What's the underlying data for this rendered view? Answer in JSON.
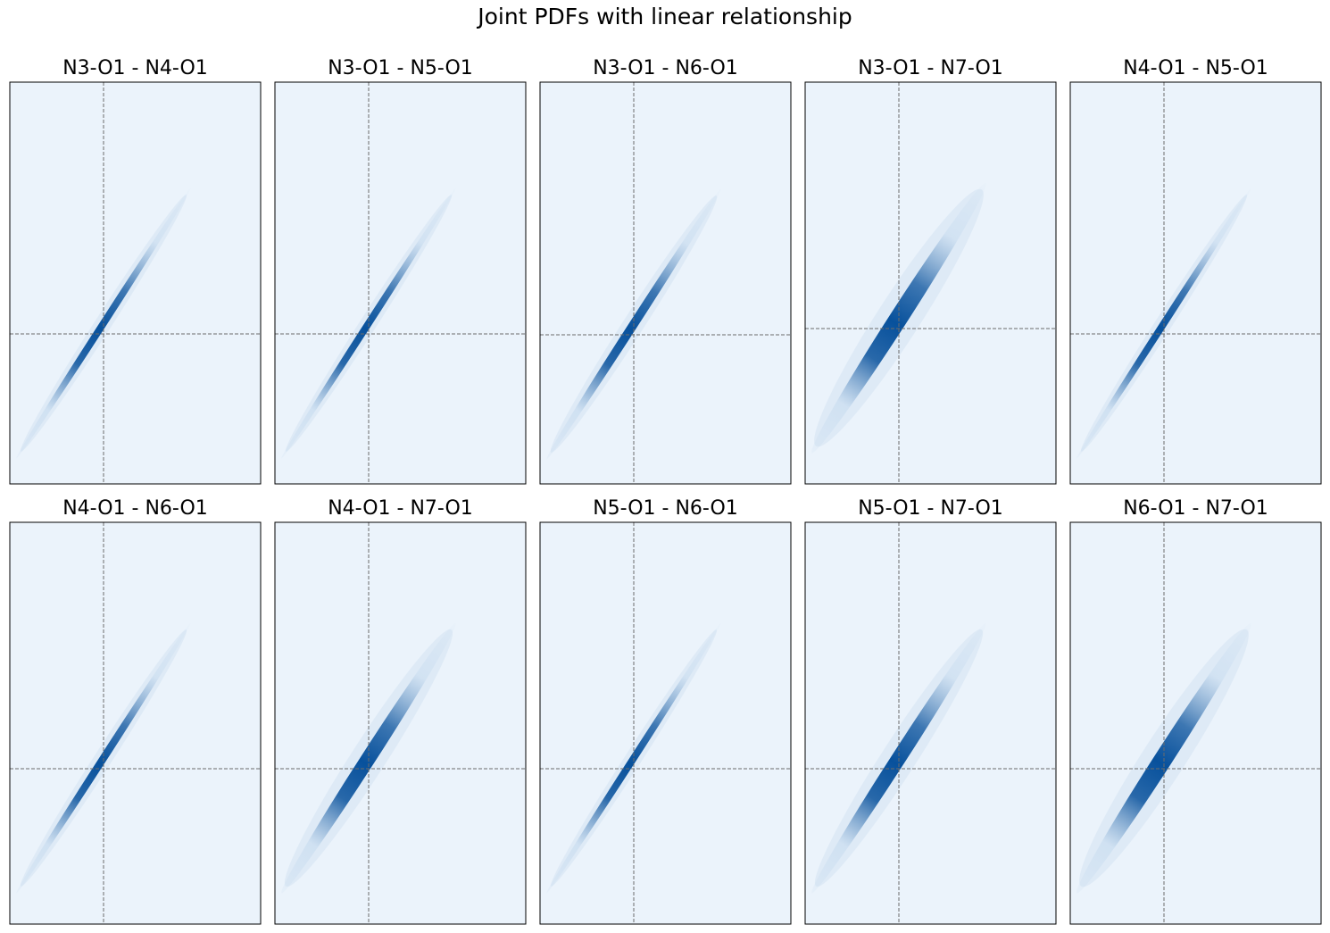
{
  "title": "Joint PDFs with linear relationship",
  "colors": {
    "background": "#ebf3fb",
    "density_low": "#c6dbef",
    "density_high": "#08519c",
    "guide": "#6b6b6b"
  },
  "chart_data": [
    {
      "type": "heatmap",
      "title": "N3-O1 - N4-O1",
      "width": 0.35,
      "spread": 0.3
    },
    {
      "type": "heatmap",
      "title": "N3-O1 - N5-O1",
      "width": 0.35,
      "spread": 0.3
    },
    {
      "type": "heatmap",
      "title": "N3-O1 - N6-O1",
      "width": 0.55,
      "spread": 0.3
    },
    {
      "type": "heatmap",
      "title": "N3-O1 - N7-O1",
      "width": 1.6,
      "spread": 0.32
    },
    {
      "type": "heatmap",
      "title": "N4-O1 - N5-O1",
      "width": 0.35,
      "spread": 0.3
    },
    {
      "type": "heatmap",
      "title": "N4-O1 - N6-O1",
      "width": 0.4,
      "spread": 0.3
    },
    {
      "type": "heatmap",
      "title": "N4-O1 - N7-O1",
      "width": 1.2,
      "spread": 0.32
    },
    {
      "type": "heatmap",
      "title": "N5-O1 - N6-O1",
      "width": 0.35,
      "spread": 0.3
    },
    {
      "type": "heatmap",
      "title": "N5-O1 - N7-O1",
      "width": 1.2,
      "spread": 0.32
    },
    {
      "type": "heatmap",
      "title": "N6-O1 - N7-O1",
      "width": 1.6,
      "spread": 0.32
    }
  ]
}
